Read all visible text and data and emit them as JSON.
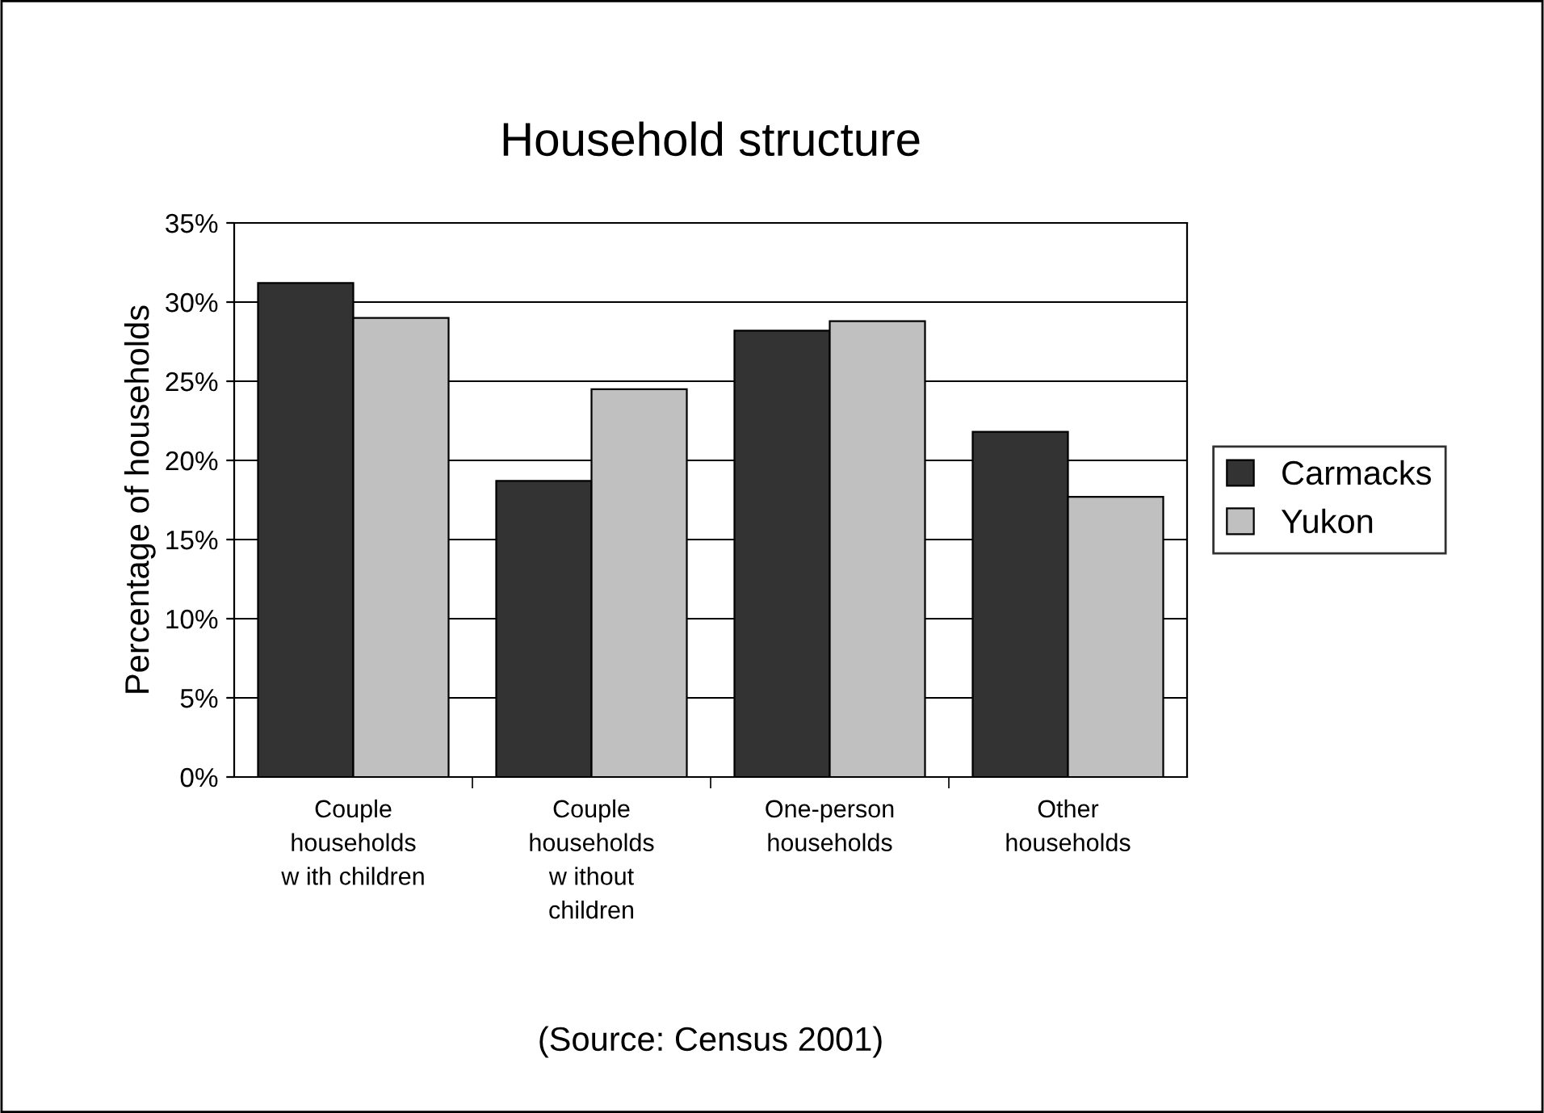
{
  "chart_data": {
    "type": "bar",
    "title": "Household structure",
    "ylabel": "Percentage of households",
    "categories": [
      "Couple\nhouseholds\nw ith children",
      "Couple\nhouseholds\nw ithout\nchildren",
      "One-person\nhouseholds",
      "Other\nhouseholds"
    ],
    "series": [
      {
        "name": "Carmacks",
        "color": "#333333",
        "values": [
          31.2,
          18.7,
          28.2,
          21.8
        ]
      },
      {
        "name": "Yukon",
        "color": "#c0c0c0",
        "values": [
          29.0,
          24.5,
          28.8,
          17.7
        ]
      }
    ],
    "ylim": [
      0,
      35
    ],
    "yticks": [
      {
        "value": 0,
        "label": "0%"
      },
      {
        "value": 5,
        "label": "5%"
      },
      {
        "value": 10,
        "label": "10%"
      },
      {
        "value": 15,
        "label": "15%"
      },
      {
        "value": 20,
        "label": "20%"
      },
      {
        "value": 25,
        "label": "25%"
      },
      {
        "value": 30,
        "label": "30%"
      },
      {
        "value": 35,
        "label": "35%"
      }
    ],
    "grid": "y",
    "legend": "right",
    "annotations": [
      "(Source: Census 2001)"
    ]
  }
}
